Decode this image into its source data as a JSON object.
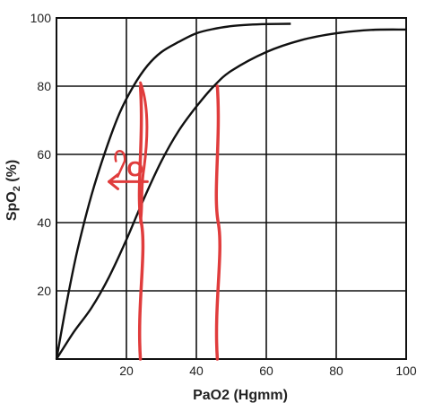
{
  "chart_data": {
    "type": "line",
    "title": "",
    "xlabel": "PaO2 (Hgmm)",
    "ylabel_main": "SpO",
    "ylabel_sub": "2",
    "ylabel_tail": " (%)",
    "xlim": [
      0,
      100
    ],
    "ylim": [
      0,
      100
    ],
    "xticks": [
      20,
      40,
      60,
      80,
      100
    ],
    "yticks": [
      20,
      40,
      60,
      80,
      100
    ],
    "grid": true,
    "series": [
      {
        "x": [
          0,
          3,
          6,
          10,
          14,
          18,
          22,
          26,
          30,
          35,
          40,
          45,
          50,
          55,
          60,
          67
        ],
        "y": [
          0,
          17,
          32,
          48,
          61,
          72,
          80,
          86,
          90,
          93,
          95.5,
          96.8,
          97.6,
          98,
          98.2,
          98.3
        ]
      },
      {
        "x": [
          0,
          5,
          10,
          15,
          20,
          25,
          30,
          35,
          40,
          45,
          50,
          60,
          70,
          80,
          90,
          100
        ],
        "y": [
          0,
          8,
          15,
          24,
          35,
          47,
          58,
          67,
          74,
          80,
          84.5,
          90,
          93.5,
          95.5,
          96.5,
          96.6
        ]
      }
    ],
    "annotation": {
      "color": "#e03c3c",
      "text": "O",
      "arrow": "left-arrow",
      "vertical_lines_x": [
        24,
        46
      ],
      "vertical_lines_y_top": [
        80,
        80
      ],
      "arrow_y": 52,
      "arrow_x_from": 26,
      "arrow_x_to": 15
    }
  }
}
